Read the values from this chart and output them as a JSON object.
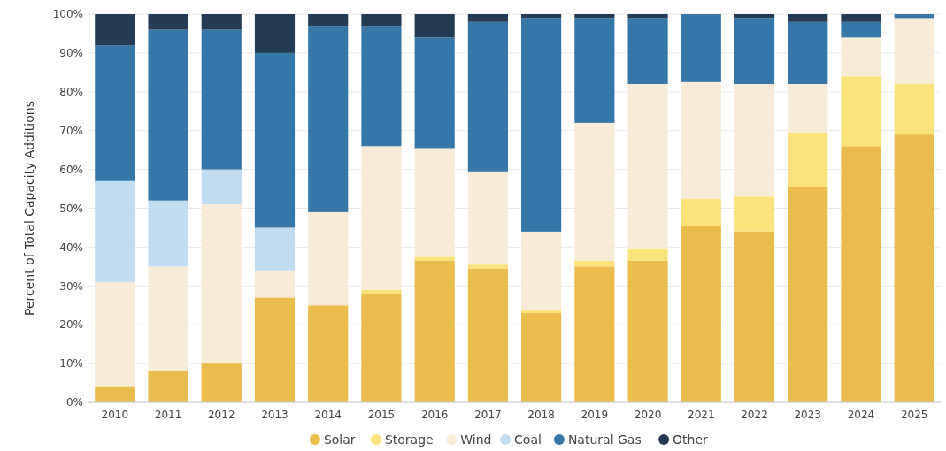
{
  "chart_data": {
    "type": "bar",
    "stacked": true,
    "ylabel": "Percent of Total Capacity Additions",
    "categories": [
      "2010",
      "2011",
      "2012",
      "2013",
      "2014",
      "2015",
      "2016",
      "2017",
      "2018",
      "2019",
      "2020",
      "2021",
      "2022",
      "2023",
      "2024",
      "2025"
    ],
    "ylim": [
      0,
      100
    ],
    "yticks": [
      {
        "value": 0,
        "label": "0%"
      },
      {
        "value": 10,
        "label": "10%"
      },
      {
        "value": 20,
        "label": "20%"
      },
      {
        "value": 30,
        "label": "30%"
      },
      {
        "value": 40,
        "label": "40%"
      },
      {
        "value": 50,
        "label": "50%"
      },
      {
        "value": 60,
        "label": "60%"
      },
      {
        "value": 70,
        "label": "70%"
      },
      {
        "value": 80,
        "label": "80%"
      },
      {
        "value": 90,
        "label": "90%"
      },
      {
        "value": 100,
        "label": "100%"
      }
    ],
    "grid": "y",
    "legend": "bottom",
    "series": [
      {
        "name": "Solar",
        "color": "#e9bc4c",
        "values": [
          4,
          8,
          10,
          27,
          25,
          28,
          36.5,
          34.5,
          23,
          35,
          36.5,
          45.5,
          44,
          55.5,
          66,
          69
        ]
      },
      {
        "name": "Storage",
        "color": "#fbe27a",
        "values": [
          0,
          0,
          0,
          0,
          0,
          1,
          1,
          1,
          1,
          1.5,
          3,
          7,
          9,
          14,
          18,
          13
        ]
      },
      {
        "name": "Wind",
        "color": "#f8ebd8",
        "values": [
          27,
          27,
          41,
          7,
          24,
          37,
          28,
          24,
          20,
          35.5,
          42.5,
          30,
          29,
          12.5,
          10,
          17
        ]
      },
      {
        "name": "Coal",
        "color": "#c0dcf0",
        "values": [
          26,
          17,
          9,
          11,
          0,
          0,
          0,
          0,
          0,
          0,
          0,
          0,
          0,
          0,
          0,
          0
        ]
      },
      {
        "name": "Natural Gas",
        "color": "#3577a8",
        "values": [
          35,
          44,
          36,
          45,
          48,
          31,
          28.5,
          38.5,
          55,
          27,
          17,
          17.5,
          17,
          16,
          4,
          1
        ]
      },
      {
        "name": "Other",
        "color": "#243b55",
        "values": [
          8,
          4,
          4,
          10,
          3,
          3,
          6,
          2,
          1,
          1,
          1,
          0,
          1,
          2,
          2,
          0
        ]
      }
    ]
  }
}
